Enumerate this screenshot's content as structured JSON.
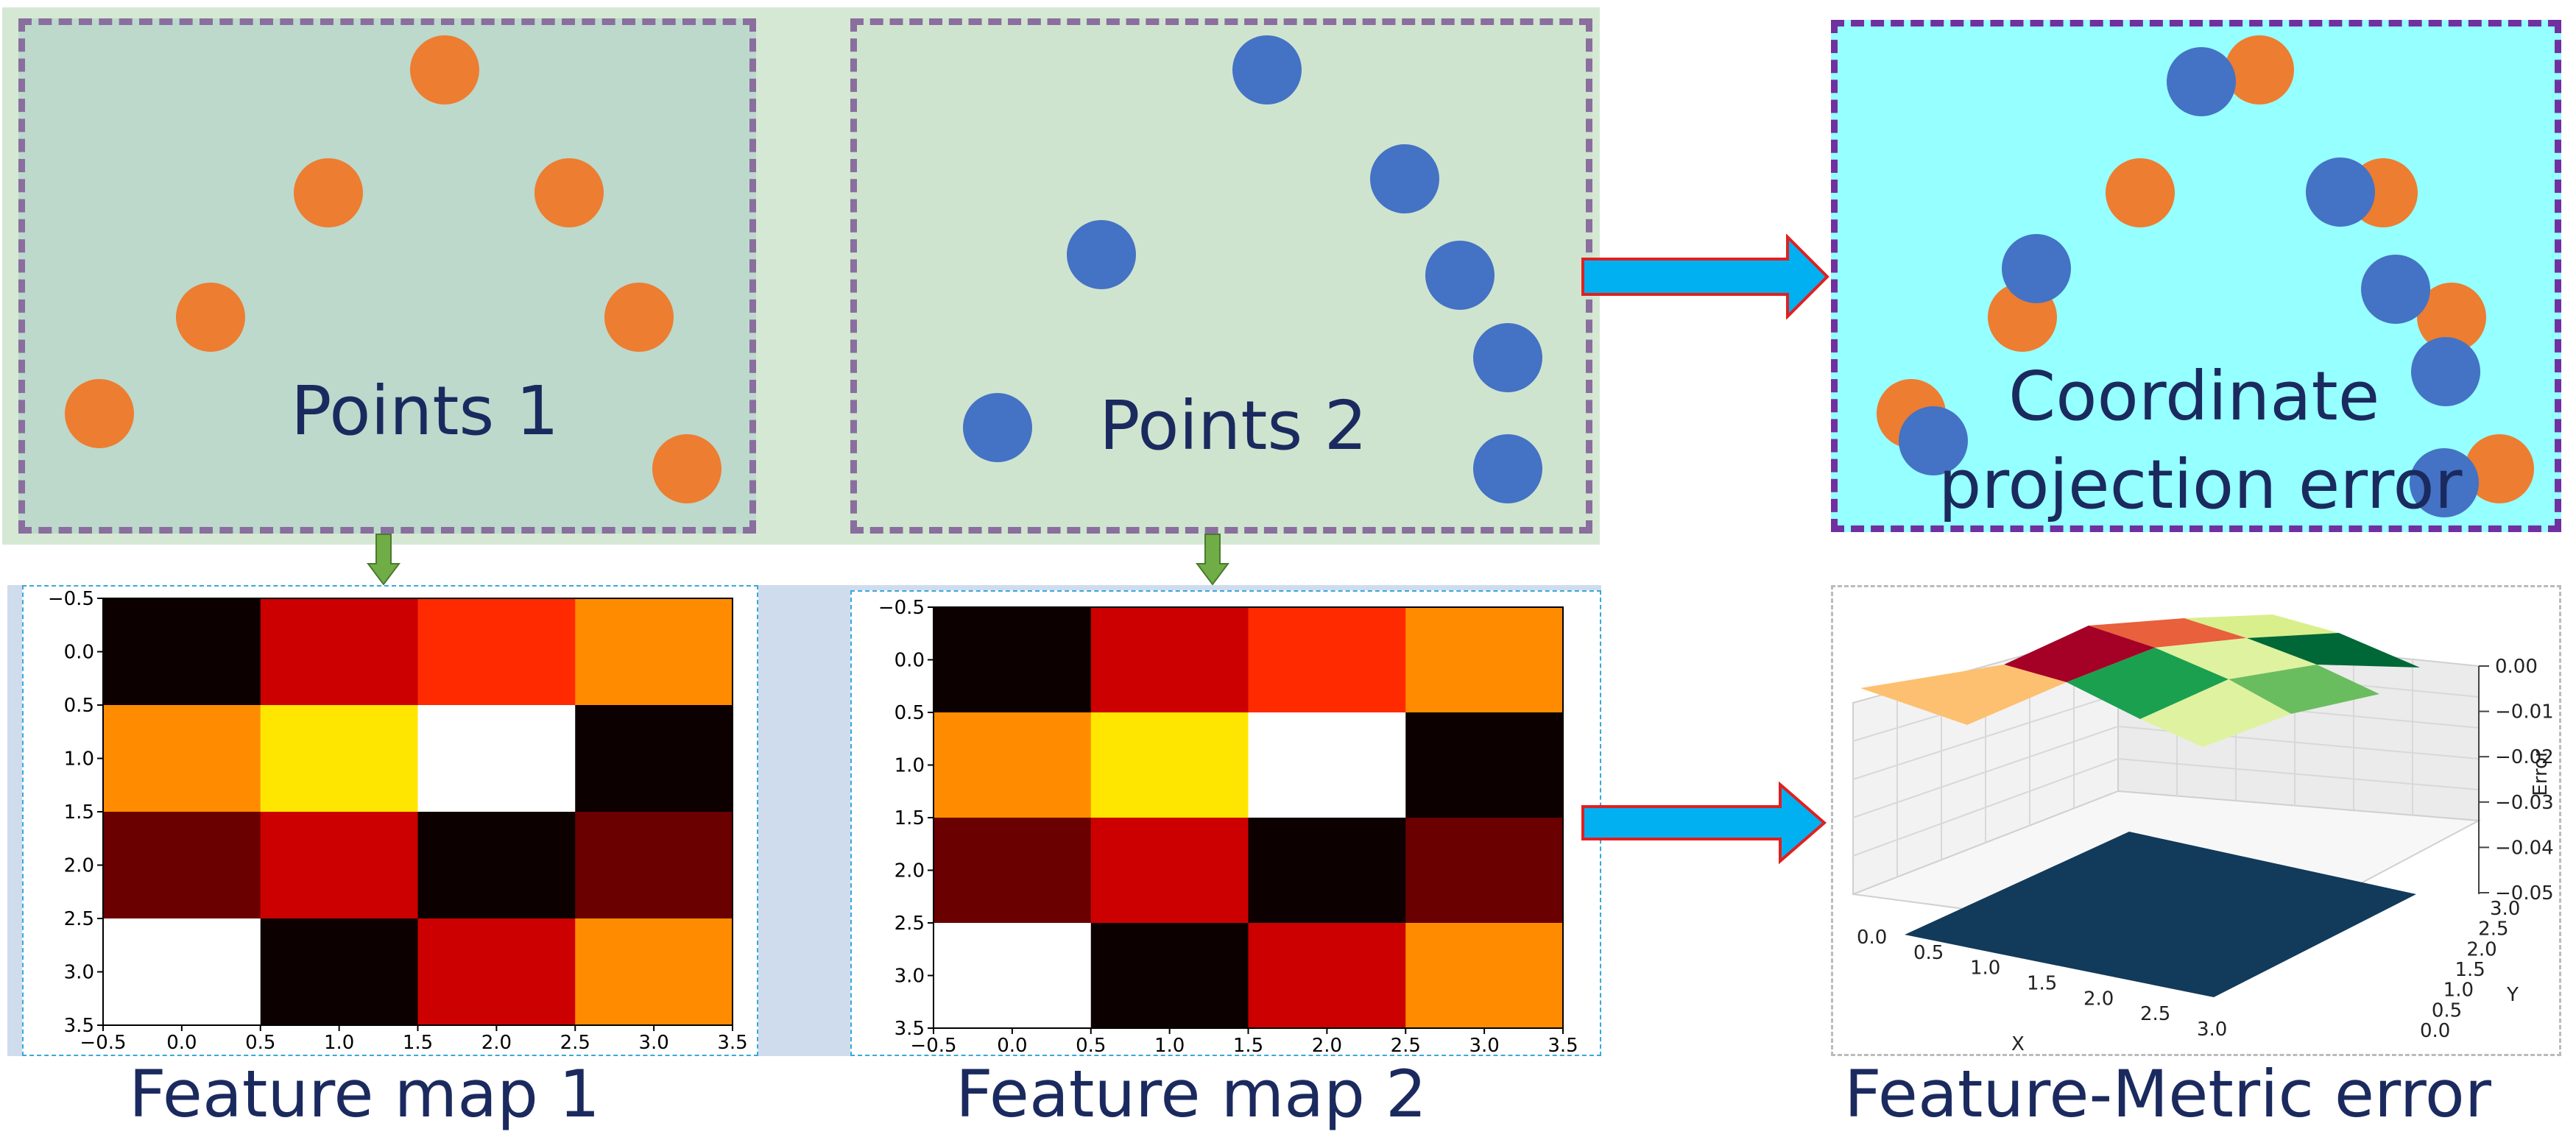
{
  "top_row": {
    "panel1_label": "Points 1",
    "panel2_label": "Points 2",
    "panel3_label_line1": "Coordinate",
    "panel3_label_line2": "projection error"
  },
  "points": {
    "points1_color": "#ed7d31",
    "points2_color": "#4472c4"
  },
  "bottom_row": {
    "caption1": "Feature map 1",
    "caption2": "Feature map 2",
    "caption3": "Feature-Metric error"
  },
  "heatmap": {
    "x_ticks": [
      "−0.5",
      "0.0",
      "0.5",
      "1.0",
      "1.5",
      "2.0",
      "2.5",
      "3.0",
      "3.5"
    ],
    "y_ticks": [
      "−0.5",
      "0.0",
      "0.5",
      "1.0",
      "1.5",
      "2.0",
      "2.5",
      "3.0",
      "3.5"
    ],
    "colormap": "hot",
    "cells": [
      [
        "#0c0000",
        "#cc0000",
        "#ff2a00",
        "#ff8c00"
      ],
      [
        "#ff8c00",
        "#ffe600",
        "#ffffff",
        "#0c0000"
      ],
      [
        "#6a0000",
        "#cc0000",
        "#0c0000",
        "#6a0000"
      ],
      [
        "#ffffff",
        "#0c0000",
        "#cc0000",
        "#ff8c00"
      ]
    ]
  },
  "surface_plot": {
    "x_label": "X",
    "y_label": "Y",
    "z_label": "Error",
    "x_ticks": [
      "0.0",
      "0.5",
      "1.0",
      "1.5",
      "2.0",
      "2.5",
      "3.0"
    ],
    "y_ticks": [
      "0.0",
      "0.5",
      "1.0",
      "1.5",
      "2.0",
      "2.5",
      "3.0"
    ],
    "z_ticks": [
      "0.00",
      "−0.01",
      "−0.02",
      "−0.03",
      "−0.04",
      "−0.05"
    ],
    "top_surface_colors": [
      "#e8603c",
      "#a50026",
      "#d9ef8b",
      "#006837",
      "#fdc070",
      "#1aa04f",
      "#6abd5f",
      "#dff2a0"
    ],
    "bottom_surface_color": "#123a5a"
  },
  "colors": {
    "panel_green": "#d5e8d4",
    "panel_cyan": "#96ffff",
    "dash_gray": "#8a6e9e",
    "dash_purple": "#7030a0",
    "arrow_blue": "#00b0f0",
    "arrow_red": "#e02020",
    "down_arrow_green": "#70ad47",
    "text_navy": "#1b2a5e"
  }
}
